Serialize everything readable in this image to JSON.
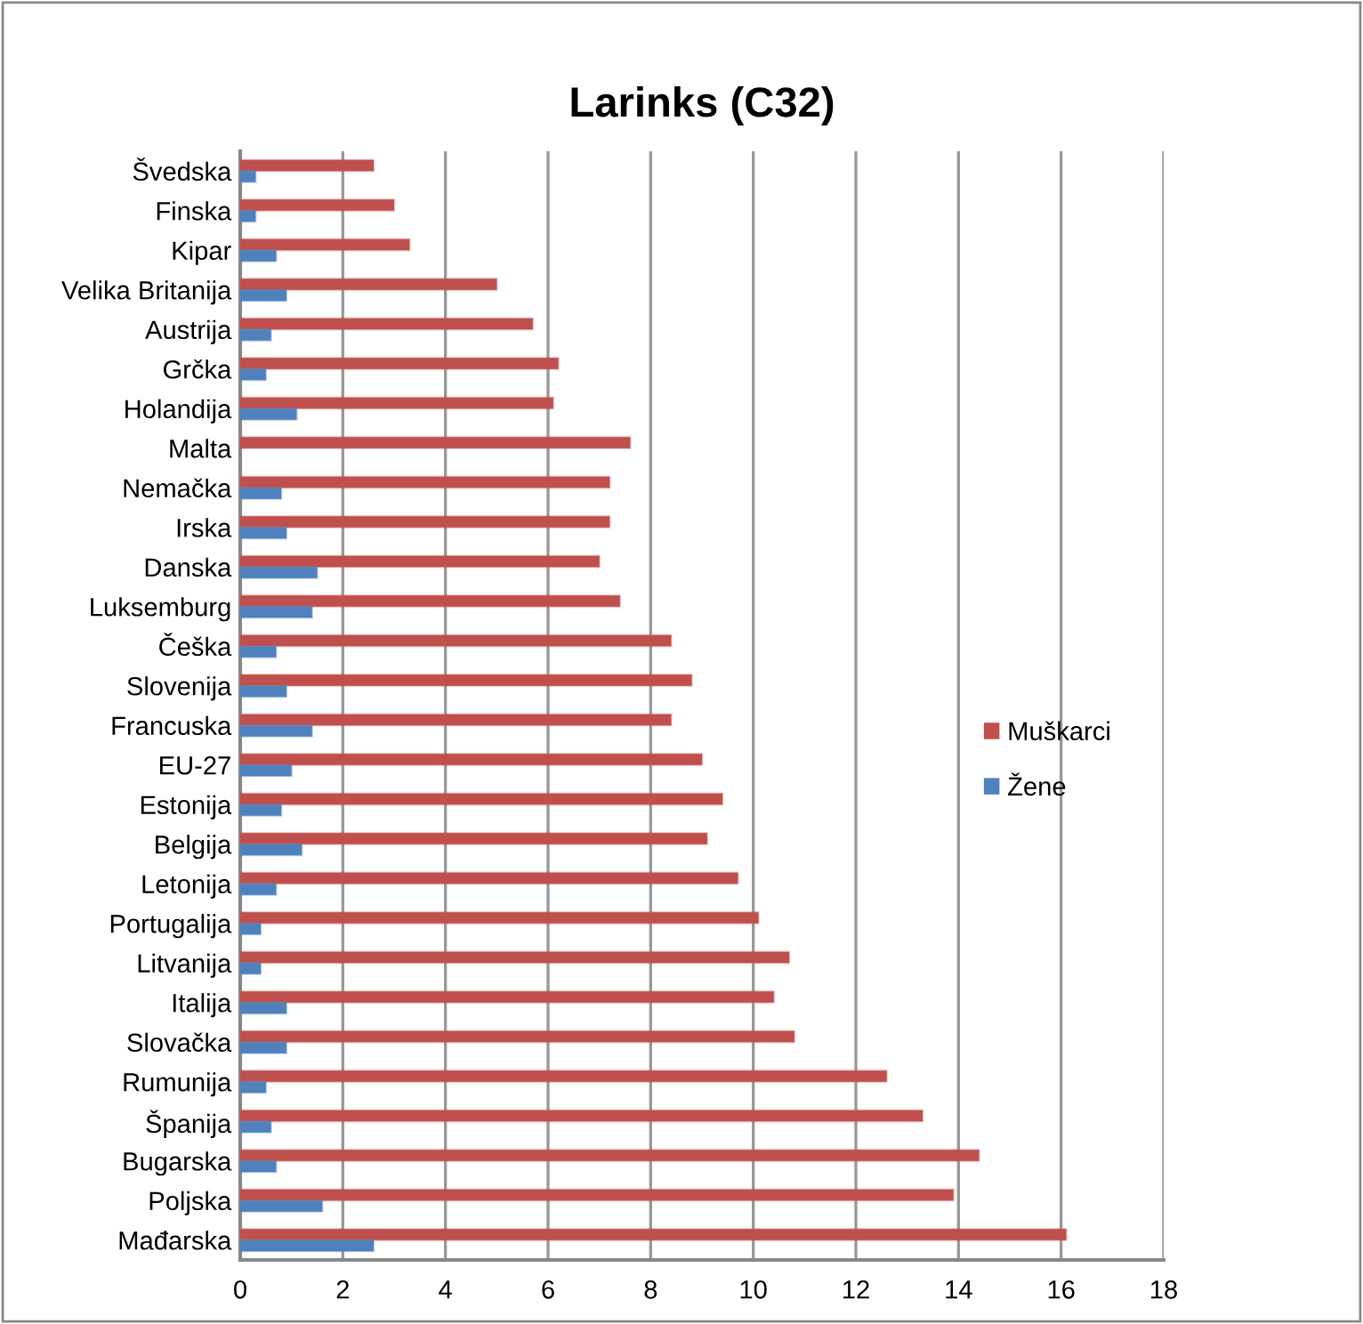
{
  "chart_data": {
    "type": "bar",
    "orientation": "horizontal",
    "title": "Larinks (C32)",
    "categories": [
      "Švedska",
      "Finska",
      "Kipar",
      "Velika Britanija",
      "Austrija",
      "Grčka",
      "Holandija",
      "Malta",
      "Nemačka",
      "Irska",
      "Danska",
      "Luksemburg",
      "Češka",
      "Slovenija",
      "Francuska",
      "EU-27",
      "Estonija",
      "Belgija",
      "Letonija",
      "Portugalija",
      "Litvanija",
      "Italija",
      "Slovačka",
      "Rumunija",
      "Španija",
      "Bugarska",
      "Poljska",
      "Mađarska"
    ],
    "series": [
      {
        "name": "Muškarci",
        "color": "#c0504d",
        "values": [
          2.6,
          3.0,
          3.3,
          5.0,
          5.7,
          6.2,
          6.1,
          7.6,
          7.2,
          7.2,
          7.0,
          7.4,
          8.4,
          8.8,
          8.4,
          9.0,
          9.4,
          9.1,
          9.7,
          10.1,
          10.7,
          10.4,
          10.8,
          12.6,
          13.3,
          14.4,
          13.9,
          16.1
        ]
      },
      {
        "name": "Žene",
        "color": "#4f81bd",
        "values": [
          0.3,
          0.3,
          0.7,
          0.9,
          0.6,
          0.5,
          1.1,
          null,
          0.8,
          0.9,
          1.5,
          1.4,
          0.7,
          0.9,
          1.4,
          1.0,
          0.8,
          1.2,
          0.7,
          0.4,
          0.4,
          0.9,
          0.9,
          0.5,
          0.6,
          0.7,
          1.6,
          2.6
        ]
      }
    ],
    "xlim": [
      0,
      18
    ],
    "xticks": [
      0,
      2,
      4,
      6,
      8,
      10,
      12,
      14,
      16,
      18
    ],
    "grid": "x",
    "legend": "right"
  }
}
